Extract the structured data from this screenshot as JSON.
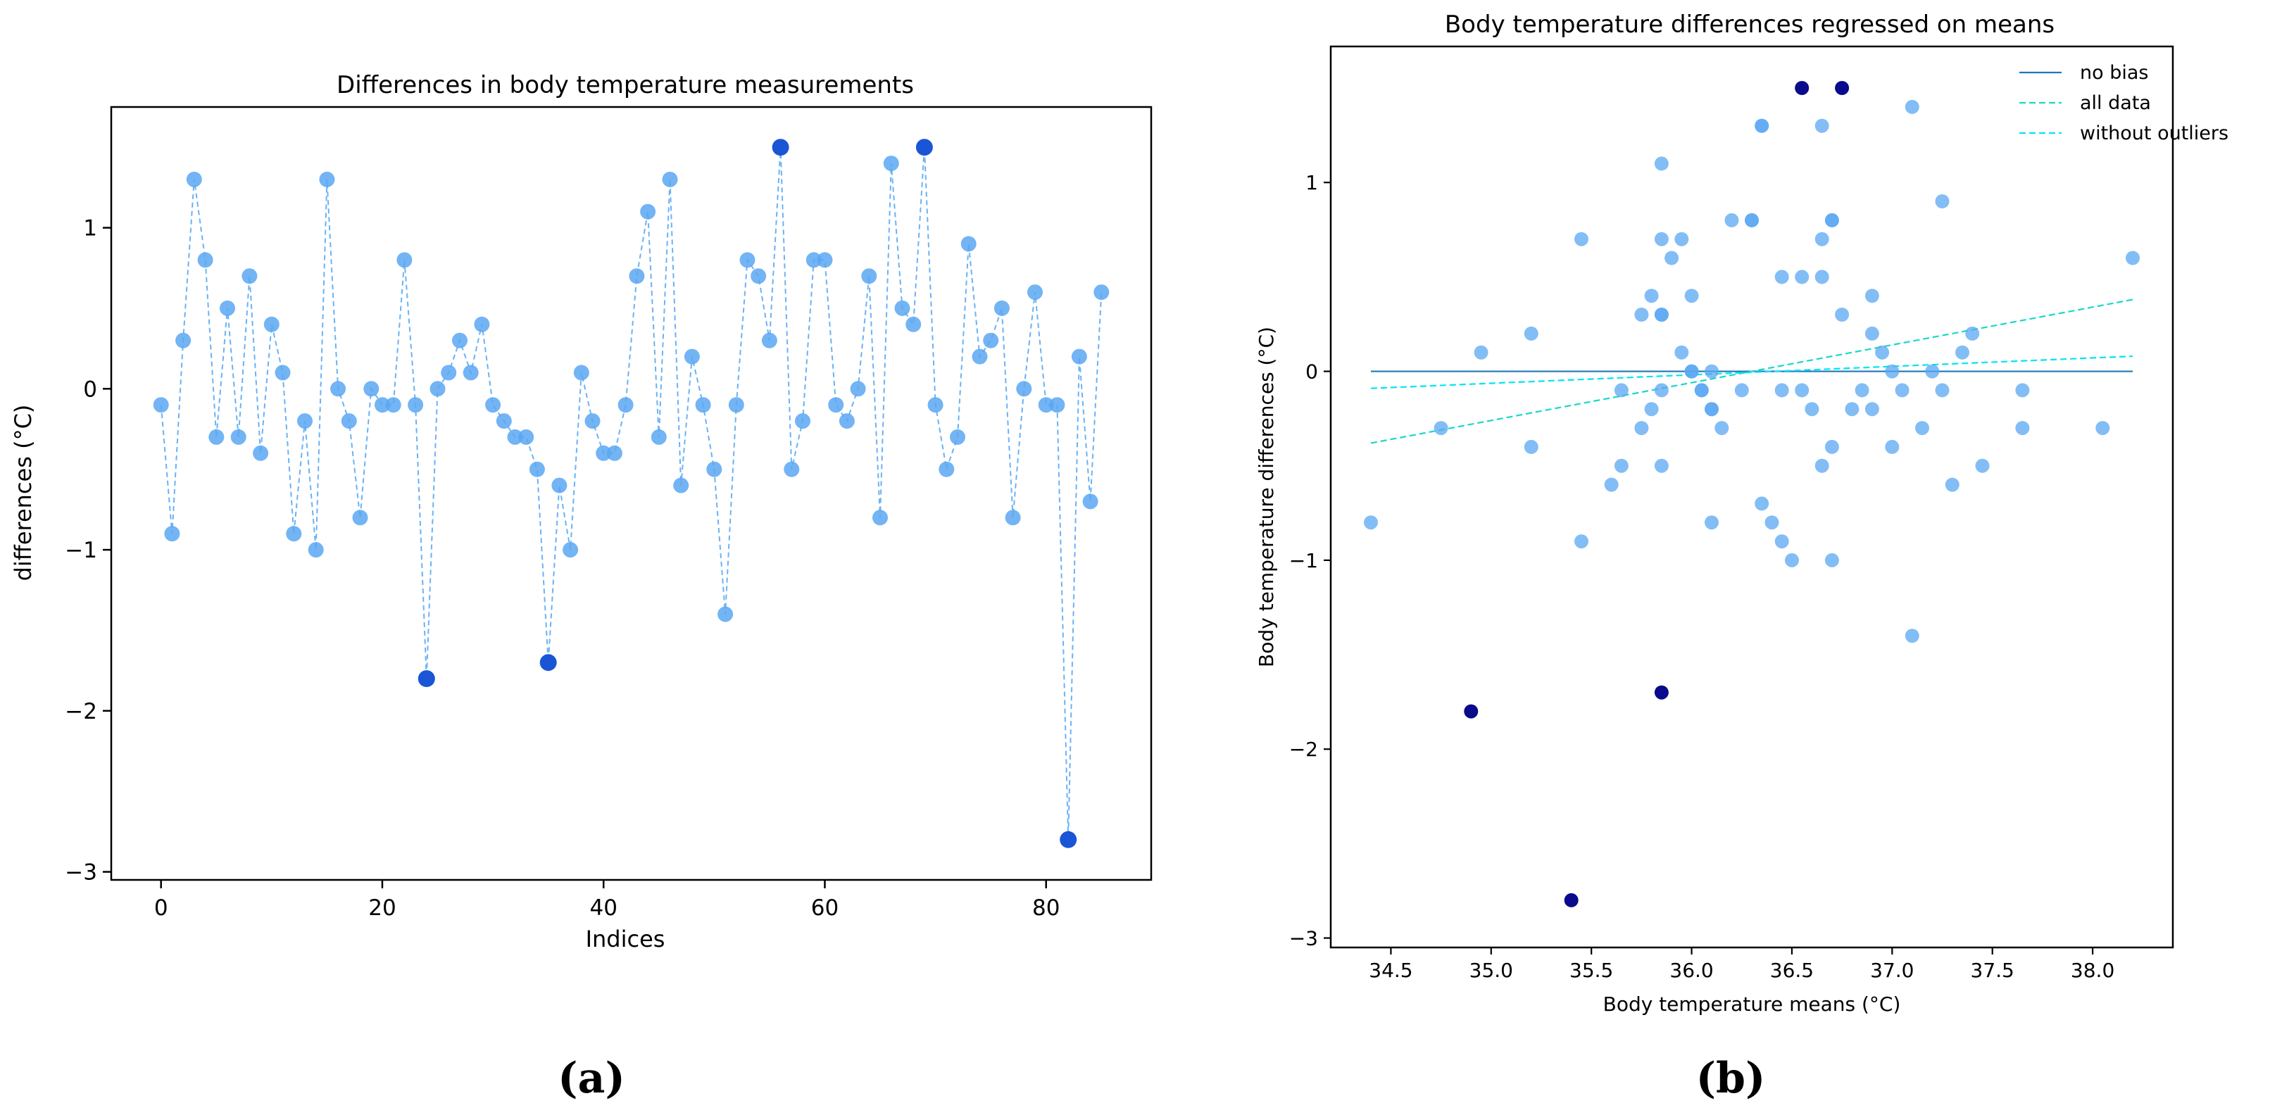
{
  "panel_labels": {
    "a": "(a)",
    "b": "(b)"
  },
  "chart_data": [
    {
      "type": "line",
      "title": "Differences in body temperature measurements",
      "xlabel": "Indices",
      "ylabel": "differences (°C)",
      "xlim": [
        -4.5,
        89.5
      ],
      "ylim": [
        -3.05,
        1.75
      ],
      "xticks": [
        0,
        20,
        40,
        60,
        80
      ],
      "xtick_labels": [
        "0",
        "20",
        "40",
        "60",
        "80"
      ],
      "yticks": [
        -3,
        -2,
        -1,
        0,
        1
      ],
      "ytick_labels": [
        "−3",
        "−2",
        "−1",
        "0",
        "1"
      ],
      "grid": false,
      "line_style": "dashed",
      "series": [
        {
          "name": "differences",
          "x": [
            0,
            1,
            2,
            3,
            4,
            5,
            6,
            7,
            8,
            9,
            10,
            11,
            12,
            13,
            14,
            15,
            16,
            17,
            18,
            19,
            20,
            21,
            22,
            23,
            24,
            25,
            26,
            27,
            28,
            29,
            30,
            31,
            32,
            33,
            34,
            35,
            36,
            37,
            38,
            39,
            40,
            41,
            42,
            43,
            44,
            45,
            46,
            47,
            48,
            49,
            50,
            51,
            52,
            53,
            54,
            55,
            56,
            57,
            58,
            59,
            60,
            61,
            62,
            63,
            64,
            65,
            66,
            67,
            68,
            69,
            70,
            71,
            72,
            73,
            74,
            75,
            76,
            77,
            78,
            79,
            80,
            81,
            82,
            83,
            84,
            85
          ],
          "y": [
            -0.1,
            -0.9,
            0.3,
            1.3,
            0.8,
            -0.3,
            0.5,
            -0.3,
            0.7,
            -0.4,
            0.4,
            0.1,
            -0.9,
            -0.2,
            -1.0,
            1.3,
            0.0,
            -0.2,
            -0.8,
            0.0,
            -0.1,
            -0.1,
            0.8,
            -0.1,
            -1.8,
            0.0,
            0.1,
            0.3,
            0.1,
            0.4,
            -0.1,
            -0.2,
            -0.3,
            -0.3,
            -0.5,
            -1.7,
            -0.6,
            -1.0,
            0.1,
            -0.2,
            -0.4,
            -0.4,
            -0.1,
            0.7,
            1.1,
            -0.3,
            1.3,
            -0.6,
            0.2,
            -0.1,
            -0.5,
            -1.4,
            -0.1,
            0.8,
            0.7,
            0.3,
            1.5,
            -0.5,
            -0.2,
            0.8,
            0.8,
            -0.1,
            -0.2,
            0.0,
            0.7,
            -0.8,
            1.4,
            0.5,
            0.4,
            1.5,
            -0.1,
            -0.5,
            -0.3,
            0.9,
            0.2,
            0.3,
            0.5,
            -0.8,
            0.0,
            0.6,
            -0.1,
            -0.1,
            -2.8,
            0.2,
            -0.7,
            0.6
          ]
        }
      ],
      "highlighted_indices": [
        24,
        35,
        56,
        69,
        82
      ],
      "colors": {
        "point": "#5aa7f2",
        "line": "#6ab2f5",
        "highlight": "#1a55d6",
        "axes": "#000000"
      }
    },
    {
      "type": "scatter",
      "title": "Body temperature differences regressed on means",
      "xlabel": "Body temperature means (°C)",
      "ylabel": "Body temperature differences (°C)",
      "xlim": [
        34.2,
        38.4
      ],
      "ylim": [
        -3.05,
        1.72
      ],
      "xticks": [
        34.5,
        35.0,
        35.5,
        36.0,
        36.5,
        37.0,
        37.5,
        38.0
      ],
      "xtick_labels": [
        "34.5",
        "35.0",
        "35.5",
        "36.0",
        "36.5",
        "37.0",
        "37.5",
        "38.0"
      ],
      "yticks": [
        -3,
        -2,
        -1,
        0,
        1
      ],
      "ytick_labels": [
        "−3",
        "−2",
        "−1",
        "0",
        "1"
      ],
      "grid": false,
      "points": [
        {
          "x": 34.4,
          "y": -0.8
        },
        {
          "x": 34.75,
          "y": -0.3
        },
        {
          "x": 34.95,
          "y": 0.1
        },
        {
          "x": 35.2,
          "y": 0.2
        },
        {
          "x": 35.2,
          "y": -0.4
        },
        {
          "x": 35.45,
          "y": 0.7
        },
        {
          "x": 35.45,
          "y": -0.9
        },
        {
          "x": 35.6,
          "y": -0.6
        },
        {
          "x": 35.65,
          "y": -0.1
        },
        {
          "x": 35.65,
          "y": -0.5
        },
        {
          "x": 35.75,
          "y": 0.3
        },
        {
          "x": 35.75,
          "y": -0.3
        },
        {
          "x": 35.8,
          "y": 0.4
        },
        {
          "x": 35.8,
          "y": -0.2
        },
        {
          "x": 35.85,
          "y": 1.1
        },
        {
          "x": 35.85,
          "y": 0.7
        },
        {
          "x": 35.85,
          "y": 0.3
        },
        {
          "x": 35.85,
          "y": 0.3
        },
        {
          "x": 35.85,
          "y": -0.1
        },
        {
          "x": 35.85,
          "y": -0.5
        },
        {
          "x": 35.9,
          "y": 0.6
        },
        {
          "x": 35.95,
          "y": 0.7
        },
        {
          "x": 35.95,
          "y": 0.1
        },
        {
          "x": 36.0,
          "y": 0.4
        },
        {
          "x": 36.0,
          "y": 0.0
        },
        {
          "x": 36.0,
          "y": 0.0
        },
        {
          "x": 36.05,
          "y": -0.1
        },
        {
          "x": 36.05,
          "y": -0.1
        },
        {
          "x": 36.1,
          "y": 0.0
        },
        {
          "x": 36.1,
          "y": -0.2
        },
        {
          "x": 36.1,
          "y": -0.2
        },
        {
          "x": 36.1,
          "y": -0.8
        },
        {
          "x": 36.15,
          "y": -0.3
        },
        {
          "x": 36.2,
          "y": 0.8
        },
        {
          "x": 36.25,
          "y": -0.1
        },
        {
          "x": 36.3,
          "y": 0.8
        },
        {
          "x": 36.3,
          "y": 0.8
        },
        {
          "x": 36.35,
          "y": 1.3
        },
        {
          "x": 36.35,
          "y": 1.3
        },
        {
          "x": 36.35,
          "y": -0.7
        },
        {
          "x": 36.4,
          "y": -0.8
        },
        {
          "x": 36.45,
          "y": 0.5
        },
        {
          "x": 36.45,
          "y": -0.1
        },
        {
          "x": 36.45,
          "y": -0.9
        },
        {
          "x": 36.5,
          "y": -1.0
        },
        {
          "x": 36.55,
          "y": 0.5
        },
        {
          "x": 36.55,
          "y": -0.1
        },
        {
          "x": 36.6,
          "y": -0.2
        },
        {
          "x": 36.65,
          "y": 1.3
        },
        {
          "x": 36.65,
          "y": 0.7
        },
        {
          "x": 36.65,
          "y": 0.5
        },
        {
          "x": 36.65,
          "y": -0.5
        },
        {
          "x": 36.7,
          "y": 0.8
        },
        {
          "x": 36.7,
          "y": 0.8
        },
        {
          "x": 36.7,
          "y": -0.4
        },
        {
          "x": 36.7,
          "y": -1.0
        },
        {
          "x": 36.75,
          "y": 0.3
        },
        {
          "x": 36.8,
          "y": -0.2
        },
        {
          "x": 36.85,
          "y": -0.1
        },
        {
          "x": 36.9,
          "y": 0.4
        },
        {
          "x": 36.9,
          "y": 0.2
        },
        {
          "x": 36.9,
          "y": -0.2
        },
        {
          "x": 36.95,
          "y": 0.1
        },
        {
          "x": 37.0,
          "y": 0.0
        },
        {
          "x": 37.0,
          "y": -0.4
        },
        {
          "x": 37.05,
          "y": -0.1
        },
        {
          "x": 37.1,
          "y": 1.4
        },
        {
          "x": 37.1,
          "y": -1.4
        },
        {
          "x": 37.15,
          "y": -0.3
        },
        {
          "x": 37.2,
          "y": 0.0
        },
        {
          "x": 37.25,
          "y": 0.9
        },
        {
          "x": 37.25,
          "y": -0.1
        },
        {
          "x": 37.3,
          "y": -0.6
        },
        {
          "x": 37.35,
          "y": 0.1
        },
        {
          "x": 37.4,
          "y": 0.2
        },
        {
          "x": 37.45,
          "y": -0.5
        },
        {
          "x": 37.65,
          "y": -0.1
        },
        {
          "x": 37.65,
          "y": -0.3
        },
        {
          "x": 38.05,
          "y": -0.3
        },
        {
          "x": 38.2,
          "y": 0.6
        }
      ],
      "outliers": [
        {
          "x": 34.9,
          "y": -1.8
        },
        {
          "x": 35.4,
          "y": -2.8
        },
        {
          "x": 35.85,
          "y": -1.7
        },
        {
          "x": 36.55,
          "y": 1.5
        },
        {
          "x": 36.75,
          "y": 1.5
        }
      ],
      "lines": [
        {
          "name": "no bias",
          "style": "solid",
          "color": "#1f77b4",
          "x": [
            34.4,
            38.2
          ],
          "y": [
            0.0,
            0.0
          ]
        },
        {
          "name": "all data",
          "style": "dashed",
          "color": "#19d8c8",
          "x": [
            34.4,
            38.2
          ],
          "y": [
            -0.38,
            0.38
          ]
        },
        {
          "name": "without outliers",
          "style": "dashed",
          "color": "#00e5f2",
          "x": [
            34.4,
            38.2
          ],
          "y": [
            -0.09,
            0.08
          ]
        }
      ],
      "legend": {
        "position": "top-right",
        "entries": [
          "no bias",
          "all data",
          "without outliers"
        ]
      },
      "colors": {
        "point": "#5aa7f2",
        "outlier": "#0a0a8c",
        "axes": "#000000"
      }
    }
  ]
}
